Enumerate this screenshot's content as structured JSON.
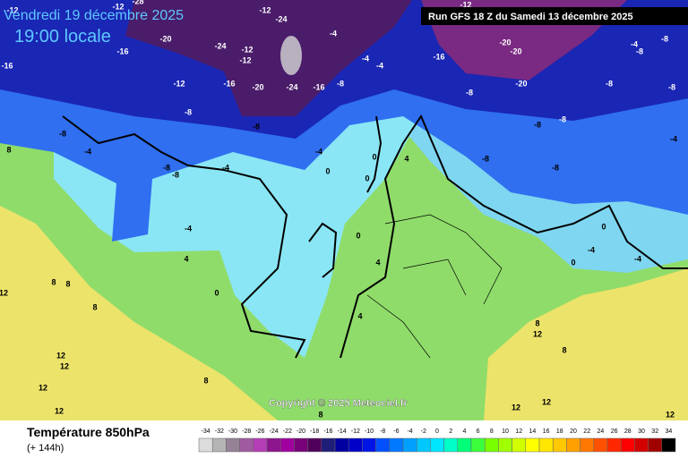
{
  "header": {
    "date": "Vendredi 19 décembre 2025",
    "time": "19:00 locale",
    "run": "Run GFS 18 Z du Samedi 13 décembre 2025"
  },
  "map": {
    "contour_labels": [
      -12,
      -12,
      -28,
      -12,
      -24,
      -12,
      -12,
      -24,
      -20,
      -16,
      -16,
      -12,
      -16,
      -20,
      -24,
      -16,
      -8,
      -4,
      -4,
      -4,
      -16,
      -12,
      -20,
      -20,
      -20,
      -8,
      -8,
      -4,
      -8,
      -8,
      -8,
      -8,
      -8,
      -8,
      -8,
      -4,
      -8,
      -8,
      -8,
      -8,
      -4,
      -4,
      0,
      0,
      0,
      4,
      -4,
      -8,
      8,
      -4,
      4,
      0,
      0,
      4,
      4,
      8,
      8,
      8,
      12,
      12,
      12,
      12,
      12,
      8,
      8,
      12,
      12,
      0,
      0,
      -4,
      -4,
      8,
      12,
      8,
      12
    ]
  },
  "copyright": "Copyright © 2025 Meteociel.fr",
  "footer": {
    "title": "Température 850hPa",
    "lead_time": "(+ 144h)"
  },
  "scale": {
    "values": [
      -34,
      -32,
      -30,
      -28,
      -26,
      -24,
      -22,
      -20,
      -18,
      -16,
      -14,
      -12,
      -10,
      -8,
      -6,
      -4,
      -2,
      0,
      2,
      4,
      6,
      8,
      10,
      12,
      14,
      16,
      18,
      20,
      22,
      24,
      26,
      28,
      30,
      32,
      34
    ],
    "colors": [
      "#dcdcdc",
      "#b4b4b4",
      "#968296",
      "#a05aa0",
      "#b43cb4",
      "#8c148c",
      "#a000a0",
      "#780078",
      "#50005a",
      "#1e1e78",
      "#0000a0",
      "#0000c8",
      "#0014e6",
      "#0050ff",
      "#0078ff",
      "#00a0ff",
      "#00c8ff",
      "#00e6ff",
      "#00ffc8",
      "#00ff78",
      "#3cff3c",
      "#78ff00",
      "#a0ff00",
      "#d2ff00",
      "#ffff00",
      "#ffe600",
      "#ffc800",
      "#ffa000",
      "#ff7800",
      "#ff5000",
      "#ff2800",
      "#ff0000",
      "#d20000",
      "#a00000",
      "#000000"
    ]
  }
}
